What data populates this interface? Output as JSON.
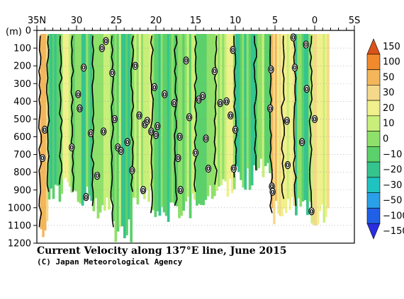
{
  "chart_data": {
    "type": "heatmap",
    "title": "Current Velocity along 137°E line, June 2015",
    "credit": "(C) Japan Meteorological Agency",
    "ylabel": "(m)",
    "xlim": [
      35,
      -5
    ],
    "ylim": [
      0,
      1200
    ],
    "x_ticks": [
      {
        "value": 35,
        "label": "35N"
      },
      {
        "value": 30,
        "label": "30"
      },
      {
        "value": 25,
        "label": "25"
      },
      {
        "value": 20,
        "label": "20"
      },
      {
        "value": 15,
        "label": "15"
      },
      {
        "value": 10,
        "label": "10"
      },
      {
        "value": 5,
        "label": "5"
      },
      {
        "value": 0,
        "label": "0"
      },
      {
        "value": -5,
        "label": "5S"
      }
    ],
    "y_ticks": [
      0,
      100,
      200,
      300,
      400,
      500,
      600,
      700,
      800,
      900,
      1000,
      1100,
      1200
    ],
    "colorbar": {
      "levels": [
        "150",
        "100",
        "50",
        "30",
        "20",
        "10",
        "0",
        "−10",
        "−20",
        "−30",
        "−50",
        "−100",
        "−150"
      ],
      "colors": [
        "#d9541a",
        "#f08a2c",
        "#f4b65a",
        "#f5d98a",
        "#f0f08c",
        "#c8ef7a",
        "#8fe06a",
        "#5cd06a",
        "#35c48e",
        "#1fc3c0",
        "#2aa0e8",
        "#2060e6",
        "#2a2ee0"
      ]
    },
    "sections": [
      {
        "lat_start": 34.6,
        "lat_end": 33.6,
        "max_depth": 1200,
        "mean_velocity": 40
      },
      {
        "lat_start": 33.6,
        "lat_end": 32.0,
        "max_depth": 1000,
        "mean_velocity": -12
      },
      {
        "lat_start": 32.0,
        "lat_end": 30.5,
        "max_depth": 960,
        "mean_velocity": 5
      },
      {
        "lat_start": 30.5,
        "lat_end": 28.0,
        "max_depth": 1000,
        "mean_velocity": -10
      },
      {
        "lat_start": 28.0,
        "lat_end": 25.5,
        "max_depth": 1070,
        "mean_velocity": 6
      },
      {
        "lat_start": 25.5,
        "lat_end": 23.0,
        "max_depth": 1200,
        "mean_velocity": -12
      },
      {
        "lat_start": 23.0,
        "lat_end": 20.5,
        "max_depth": 1000,
        "mean_velocity": 8
      },
      {
        "lat_start": 20.5,
        "lat_end": 17.5,
        "max_depth": 1100,
        "mean_velocity": -14
      },
      {
        "lat_start": 17.5,
        "lat_end": 15.0,
        "max_depth": 1060,
        "mean_velocity": -6
      },
      {
        "lat_start": 15.0,
        "lat_end": 12.5,
        "max_depth": 1000,
        "mean_velocity": -10
      },
      {
        "lat_start": 12.5,
        "lat_end": 10.0,
        "max_depth": 950,
        "mean_velocity": 4
      },
      {
        "lat_start": 10.0,
        "lat_end": 7.5,
        "max_depth": 900,
        "mean_velocity": -16
      },
      {
        "lat_start": 7.5,
        "lat_end": 5.5,
        "max_depth": 860,
        "mean_velocity": -8
      },
      {
        "lat_start": 5.5,
        "lat_end": 4.0,
        "max_depth": 1100,
        "mean_velocity": 24
      },
      {
        "lat_start": 4.0,
        "lat_end": 2.5,
        "max_depth": 1040,
        "mean_velocity": 12
      },
      {
        "lat_start": 2.5,
        "lat_end": 0.5,
        "max_depth": 1060,
        "mean_velocity": -14
      },
      {
        "lat_start": 0.5,
        "lat_end": -1.8,
        "max_depth": 1110,
        "mean_velocity": 14
      }
    ],
    "zero_labels": [
      {
        "lat": 34.3,
        "depth": 720
      },
      {
        "lat": 34.0,
        "depth": 560
      },
      {
        "lat": 30.6,
        "depth": 660
      },
      {
        "lat": 29.8,
        "depth": 360
      },
      {
        "lat": 29.6,
        "depth": 440
      },
      {
        "lat": 29.1,
        "depth": 210
      },
      {
        "lat": 28.8,
        "depth": 940
      },
      {
        "lat": 28.2,
        "depth": 580
      },
      {
        "lat": 27.4,
        "depth": 820
      },
      {
        "lat": 26.8,
        "depth": 100
      },
      {
        "lat": 26.6,
        "depth": 570
      },
      {
        "lat": 26.3,
        "depth": 60
      },
      {
        "lat": 25.5,
        "depth": 240
      },
      {
        "lat": 25.2,
        "depth": 500
      },
      {
        "lat": 24.8,
        "depth": 660
      },
      {
        "lat": 24.4,
        "depth": 680
      },
      {
        "lat": 23.6,
        "depth": 630
      },
      {
        "lat": 23.0,
        "depth": 790
      },
      {
        "lat": 22.6,
        "depth": 200
      },
      {
        "lat": 22.1,
        "depth": 480
      },
      {
        "lat": 21.6,
        "depth": 900
      },
      {
        "lat": 21.4,
        "depth": 530
      },
      {
        "lat": 21.1,
        "depth": 510
      },
      {
        "lat": 20.6,
        "depth": 570
      },
      {
        "lat": 20.2,
        "depth": 320
      },
      {
        "lat": 20.0,
        "depth": 590
      },
      {
        "lat": 19.8,
        "depth": 540
      },
      {
        "lat": 18.9,
        "depth": 360
      },
      {
        "lat": 17.7,
        "depth": 410
      },
      {
        "lat": 17.2,
        "depth": 720
      },
      {
        "lat": 17.0,
        "depth": 600
      },
      {
        "lat": 16.9,
        "depth": 900
      },
      {
        "lat": 16.2,
        "depth": 170
      },
      {
        "lat": 15.8,
        "depth": 490
      },
      {
        "lat": 15.0,
        "depth": 690
      },
      {
        "lat": 14.6,
        "depth": 390
      },
      {
        "lat": 14.1,
        "depth": 370
      },
      {
        "lat": 13.7,
        "depth": 610
      },
      {
        "lat": 13.4,
        "depth": 780
      },
      {
        "lat": 12.6,
        "depth": 230
      },
      {
        "lat": 11.9,
        "depth": 410
      },
      {
        "lat": 11.1,
        "depth": 400
      },
      {
        "lat": 10.6,
        "depth": 480
      },
      {
        "lat": 10.3,
        "depth": 110
      },
      {
        "lat": 10.2,
        "depth": 780
      },
      {
        "lat": 10.0,
        "depth": 560
      },
      {
        "lat": 5.6,
        "depth": 440
      },
      {
        "lat": 5.5,
        "depth": 220
      },
      {
        "lat": 5.4,
        "depth": 880
      },
      {
        "lat": 5.3,
        "depth": 910
      },
      {
        "lat": 3.5,
        "depth": 510
      },
      {
        "lat": 3.4,
        "depth": 760
      },
      {
        "lat": 2.7,
        "depth": 40
      },
      {
        "lat": 2.5,
        "depth": 210
      },
      {
        "lat": 1.6,
        "depth": 630
      },
      {
        "lat": 1.1,
        "depth": 80
      },
      {
        "lat": 1.0,
        "depth": 330
      },
      {
        "lat": 0.4,
        "depth": 1020
      },
      {
        "lat": 0.0,
        "depth": 500
      }
    ],
    "zero_label_text": "0"
  }
}
